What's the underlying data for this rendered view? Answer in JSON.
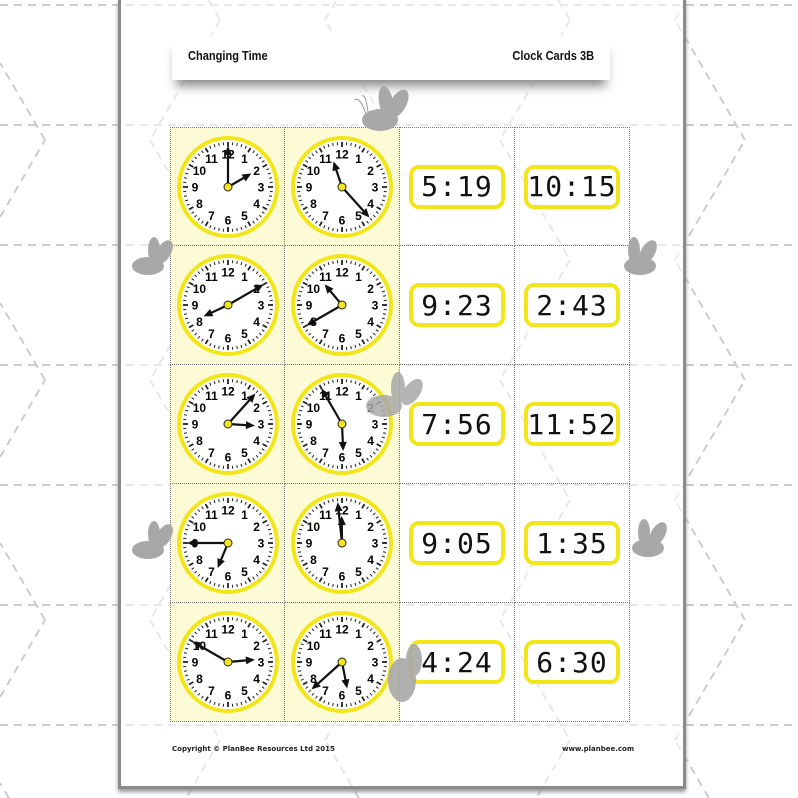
{
  "header": {
    "title": "Changing Time",
    "subtitle": "Clock Cards 3B"
  },
  "colors": {
    "clock_rim": "#f2e61a",
    "analog_card_bg": "#fdfbd6",
    "digital_border": "#f2e61a",
    "bee": "#a8a8a8"
  },
  "rows": [
    {
      "analog": [
        {
          "hour": 2,
          "minute": 0
        },
        {
          "hour": 11,
          "minute": 23
        }
      ],
      "digital": [
        "5:19",
        "10:15"
      ]
    },
    {
      "analog": [
        {
          "hour": 8,
          "minute": 10
        },
        {
          "hour": 10,
          "minute": 40
        }
      ],
      "digital": [
        "9:23",
        "2:43"
      ]
    },
    {
      "analog": [
        {
          "hour": 3,
          "minute": 7
        },
        {
          "hour": 5,
          "minute": 55
        }
      ],
      "digital": [
        "7:56",
        "11:52"
      ]
    },
    {
      "analog": [
        {
          "hour": 6,
          "minute": 45
        },
        {
          "hour": 11,
          "minute": 59
        }
      ],
      "digital": [
        "9:05",
        "1:35"
      ]
    },
    {
      "analog": [
        {
          "hour": 2,
          "minute": 50
        },
        {
          "hour": 5,
          "minute": 38
        }
      ],
      "digital": [
        "4:24",
        "6:30"
      ]
    }
  ],
  "clock_numbers": [
    "12",
    "1",
    "2",
    "3",
    "4",
    "5",
    "6",
    "7",
    "8",
    "9",
    "10",
    "11"
  ],
  "footer": {
    "copyright": "Copyright © PlanBee Resources Ltd 2015",
    "website": "www.planbee.com"
  }
}
